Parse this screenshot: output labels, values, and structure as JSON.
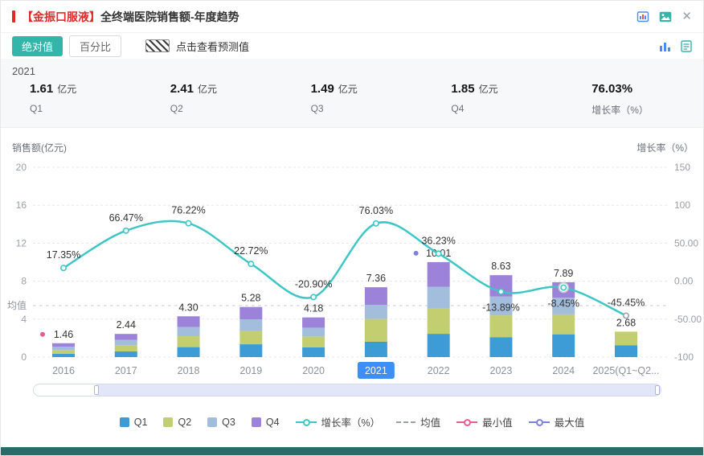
{
  "header": {
    "title_prefix": "【金振口服液】",
    "title_rest": "全终端医院销售额-年度趋势"
  },
  "toolbar": {
    "absolute_label": "绝对值",
    "percent_label": "百分比",
    "forecast_label": "点击查看预测值"
  },
  "summary": {
    "year": "2021",
    "items": [
      {
        "value": "1.61",
        "unit": "亿元",
        "label": "Q1"
      },
      {
        "value": "2.41",
        "unit": "亿元",
        "label": "Q2"
      },
      {
        "value": "1.49",
        "unit": "亿元",
        "label": "Q3"
      },
      {
        "value": "1.85",
        "unit": "亿元",
        "label": "Q4"
      },
      {
        "value": "76.03%",
        "unit": "",
        "label": "增长率（%）"
      }
    ]
  },
  "chart_data": {
    "type": "bar+line",
    "title": "全终端医院销售额-年度趋势",
    "ylabel_left": "销售额(亿元)",
    "ylabel_right": "增长率（%）",
    "categories": [
      "2016",
      "2017",
      "2018",
      "2019",
      "2020",
      "2021",
      "2022",
      "2023",
      "2024",
      "2025(Q1~Q2..."
    ],
    "selected_category": "2021",
    "left_axis": {
      "min": 0,
      "max": 20,
      "ticks": [
        0,
        4,
        8,
        12,
        16,
        20
      ]
    },
    "right_axis": {
      "min": -100,
      "max": 150,
      "tick_labels": [
        "-100",
        "-50.00",
        "0.00",
        "50.00",
        "100",
        "150"
      ]
    },
    "series": [
      {
        "name": "Q1",
        "color": "#3D9BD5",
        "values": [
          0.35,
          0.6,
          1.05,
          1.35,
          1.02,
          1.61,
          2.45,
          2.1,
          2.4,
          1.25
        ]
      },
      {
        "name": "Q2",
        "color": "#C3CE70",
        "values": [
          0.4,
          0.66,
          1.15,
          1.4,
          1.15,
          2.41,
          2.65,
          2.3,
          2.1,
          1.43
        ]
      },
      {
        "name": "Q3",
        "color": "#A3BEDC",
        "values": [
          0.33,
          0.55,
          0.98,
          1.23,
          0.93,
          1.49,
          2.3,
          1.98,
          1.75,
          0
        ]
      },
      {
        "name": "Q4",
        "color": "#9C82D9",
        "values": [
          0.38,
          0.63,
          1.12,
          1.3,
          1.08,
          1.85,
          2.61,
          2.25,
          1.64,
          0
        ]
      }
    ],
    "totals": [
      "1.46",
      "2.44",
      "4.30",
      "5.28",
      "4.18",
      "7.36",
      "10.01",
      "8.63",
      "7.89",
      "2.68"
    ],
    "growth": {
      "name": "增长率（%）",
      "color": "#3EC6C6",
      "values": [
        17.35,
        66.47,
        76.22,
        22.72,
        -20.9,
        76.03,
        36.23,
        -13.89,
        -8.45,
        -45.45
      ],
      "labels": [
        "17.35%",
        "66.47%",
        "76.22%",
        "22.72%",
        "-20.90%",
        "76.03%",
        "36.23%",
        "-13.89%",
        "-8.45%",
        "-45.45%"
      ]
    },
    "mean": {
      "label": "均值",
      "value": 5.42
    },
    "markers": {
      "max": {
        "label": "最大值",
        "category": "2022",
        "color": "#7B80DB"
      },
      "min": {
        "label": "最小值",
        "category": "2016",
        "color": "#E85C8C"
      }
    },
    "grid": true,
    "legend_position": "bottom"
  },
  "legend": [
    {
      "label": "Q1",
      "type": "square",
      "color": "#3D9BD5"
    },
    {
      "label": "Q2",
      "type": "square",
      "color": "#C3CE70"
    },
    {
      "label": "Q3",
      "type": "square",
      "color": "#A3BEDC"
    },
    {
      "label": "Q4",
      "type": "square",
      "color": "#9C82D9"
    },
    {
      "label": "增长率（%）",
      "type": "line-circle",
      "color": "#3EC6C6"
    },
    {
      "label": "均值",
      "type": "dashed",
      "color": "#9AA0A8"
    },
    {
      "label": "最小值",
      "type": "line-circle",
      "color": "#E85C8C"
    },
    {
      "label": "最大值",
      "type": "line-circle",
      "color": "#7B80DB"
    }
  ],
  "colors": {
    "title_red": "#E02A2A",
    "accent_teal": "#33B5A9",
    "selected_blue": "#3E8EF7",
    "bottom_bar": "#2A6B68"
  }
}
